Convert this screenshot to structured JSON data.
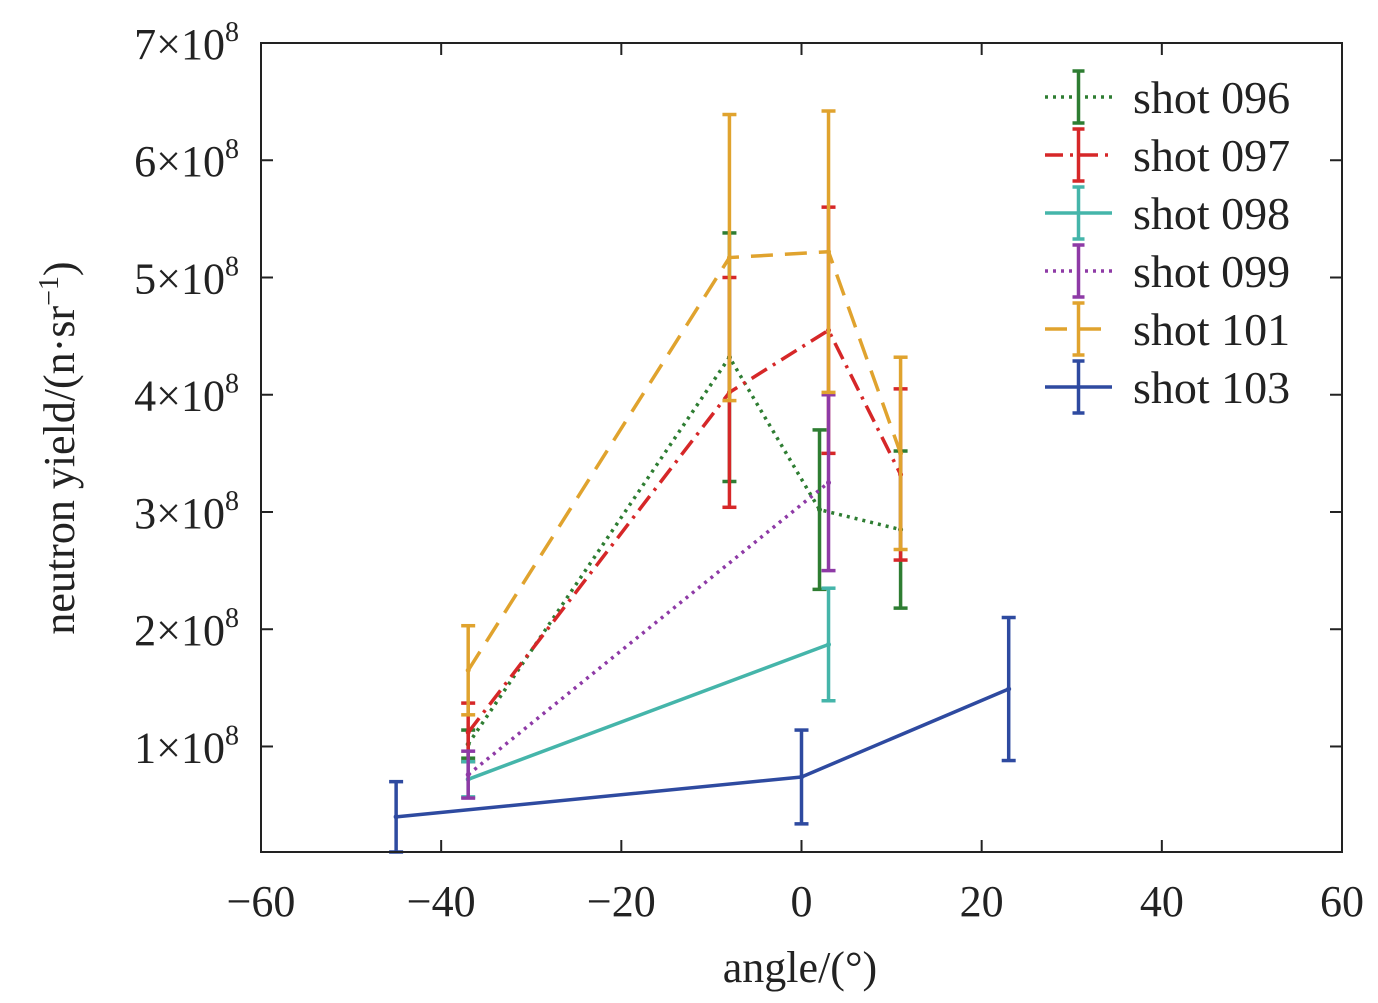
{
  "chart_data": {
    "type": "line",
    "xlabel": "angle/(°)",
    "ylabel": "neutron yield/(n·sr",
    "ylabel_sup": "−1",
    "ylabel_close": ")",
    "xlim": [
      -60,
      60
    ],
    "ylim": [
      0.1,
      7.0
    ],
    "x_ticks": [
      -60,
      -40,
      -20,
      0,
      20,
      40,
      60
    ],
    "x_tick_labels": [
      "−60",
      "−40",
      "−20",
      "0",
      "20",
      "40",
      "60"
    ],
    "y_ticks": [
      1,
      2,
      3,
      4,
      5,
      6,
      7
    ],
    "y_tick_labels": [
      "1×10",
      "2×10",
      "3×10",
      "4×10",
      "5×10",
      "6×10",
      "7×10"
    ],
    "y_tick_exponent": "8",
    "y_unit": "×10^8 n·sr^-1",
    "grid": false,
    "legend_position": "top-right",
    "series": [
      {
        "name": "shot 096",
        "color": "#2e7d32",
        "dash": "dotted",
        "x": [
          -37,
          -8,
          2,
          11
        ],
        "y": [
          1.02,
          4.32,
          3.02,
          2.85
        ],
        "err": [
          0.12,
          1.06,
          0.68,
          0.67
        ]
      },
      {
        "name": "shot 097",
        "color": "#d62728",
        "dash": "dashdot",
        "x": [
          -37,
          -8,
          3,
          11
        ],
        "y": [
          1.12,
          4.02,
          4.55,
          3.32
        ],
        "err": [
          0.25,
          0.98,
          1.05,
          0.73
        ]
      },
      {
        "name": "shot 098",
        "color": "#45b5aa",
        "dash": "solid",
        "x": [
          -37,
          3
        ],
        "y": [
          0.72,
          1.87
        ],
        "err": [
          0.15,
          0.48
        ]
      },
      {
        "name": "shot 099",
        "color": "#8e3aa6",
        "dash": "dotted",
        "x": [
          -37,
          3
        ],
        "y": [
          0.76,
          3.25
        ],
        "err": [
          0.2,
          0.75
        ]
      },
      {
        "name": "shot 101",
        "color": "#e0a32e",
        "dash": "dashed",
        "x": [
          -37,
          -8,
          3,
          11
        ],
        "y": [
          1.65,
          5.17,
          5.22,
          3.5
        ],
        "err": [
          0.38,
          1.22,
          1.2,
          0.82
        ]
      },
      {
        "name": "shot 103",
        "color": "#2e4aa0",
        "dash": "solid",
        "x": [
          -45,
          0,
          23
        ],
        "y": [
          0.4,
          0.74,
          1.49
        ],
        "err": [
          0.3,
          0.4,
          0.61
        ]
      }
    ]
  }
}
